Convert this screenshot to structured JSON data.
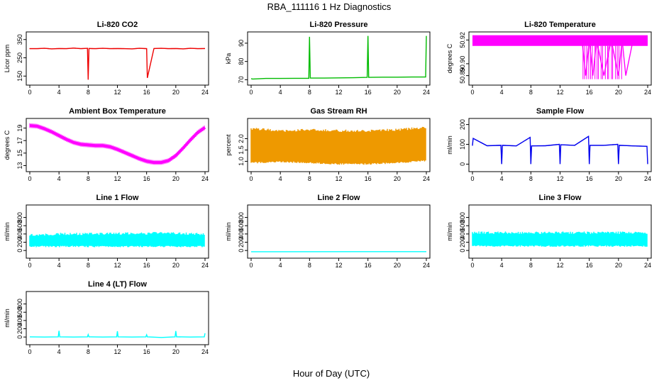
{
  "figure": {
    "title": "RBA_111116  1 Hz Diagnostics",
    "xlabel": "Hour of Day (UTC)"
  },
  "colors": {
    "red": "#ee0000",
    "green": "#00bb00",
    "magenta": "#ff00ff",
    "orange": "#ee9900",
    "blue": "#0000ee",
    "cyan": "#00ffff"
  },
  "chart_data": [
    {
      "type": "line",
      "title": "Li-820 CO2",
      "ylabel": "Licor ppm",
      "x": [
        0,
        1,
        2,
        3,
        4,
        5,
        6,
        7,
        7.9,
        8.0,
        8.1,
        9,
        10,
        11,
        12,
        13,
        14,
        15,
        16,
        16.1,
        17,
        18,
        19,
        20,
        21,
        22,
        23,
        24
      ],
      "values": [
        300,
        300,
        302,
        299,
        301,
        300,
        303,
        300,
        302,
        130,
        301,
        300,
        302,
        300,
        301,
        300,
        299,
        302,
        300,
        140,
        301,
        302,
        300,
        301,
        299,
        302,
        300,
        301
      ],
      "xticks": [
        "0",
        "4",
        "8",
        "12",
        "16",
        "20",
        "24"
      ],
      "yticks": [
        "150",
        "250",
        "350"
      ],
      "xlim": [
        0,
        24
      ],
      "ylim": [
        120,
        380
      ],
      "color": "#ee0000"
    },
    {
      "type": "line",
      "title": "Li-820 Pressure",
      "ylabel": "kPa",
      "x": [
        0,
        0.2,
        1,
        2,
        4,
        6,
        7.9,
        8.0,
        8.1,
        10,
        12,
        14,
        15.9,
        16.0,
        16.1,
        18,
        20,
        22,
        23.9,
        24.0
      ],
      "values": [
        70.6,
        70.4,
        70.5,
        70.7,
        70.7,
        70.8,
        70.8,
        93.5,
        70.9,
        70.9,
        71.0,
        71.1,
        71.3,
        94.0,
        71.3,
        71.4,
        71.4,
        71.5,
        71.5,
        94.0
      ],
      "xticks": [
        "0",
        "4",
        "8",
        "12",
        "16",
        "20",
        "24"
      ],
      "yticks": [
        "70",
        "80",
        "90"
      ],
      "xlim": [
        0,
        24
      ],
      "ylim": [
        69,
        95
      ],
      "color": "#00bb00"
    },
    {
      "type": "line",
      "title": "Li-820 Temperature",
      "ylabel": "degrees C",
      "x": [
        0,
        4,
        8,
        12,
        15,
        15.5,
        16,
        16.5,
        17,
        18,
        19,
        20,
        20.5,
        21,
        22,
        24
      ],
      "values": [
        50.92,
        50.92,
        50.92,
        50.92,
        50.92,
        50.89,
        50.92,
        50.89,
        50.92,
        50.89,
        50.92,
        50.89,
        50.92,
        50.89,
        50.92,
        50.92
      ],
      "xticks": [
        "0",
        "4",
        "8",
        "12",
        "16",
        "20",
        "24"
      ],
      "yticks": [
        "50.89",
        "50.90",
        "50.92"
      ],
      "xlim": [
        0,
        24
      ],
      "ylim": [
        50.885,
        50.925
      ],
      "color": "#ff00ff"
    },
    {
      "type": "line",
      "title": "Ambient Box Temperature",
      "ylabel": "degrees C",
      "x": [
        0,
        1,
        2,
        3,
        4,
        5,
        6,
        7,
        8,
        9,
        10,
        11,
        12,
        13,
        14,
        15,
        16,
        17,
        18,
        19,
        20,
        21,
        22,
        23,
        24
      ],
      "values": [
        19.4,
        19.3,
        18.9,
        18.4,
        17.8,
        17.2,
        16.7,
        16.4,
        16.3,
        16.2,
        16.2,
        16.0,
        15.6,
        15.1,
        14.6,
        14.1,
        13.7,
        13.5,
        13.5,
        13.8,
        14.6,
        15.8,
        17.1,
        18.3,
        19.1
      ],
      "xticks": [
        "0",
        "4",
        "8",
        "12",
        "16",
        "20",
        "24"
      ],
      "yticks": [
        "13",
        "15",
        "17",
        "19"
      ],
      "xlim": [
        0,
        24
      ],
      "ylim": [
        12.6,
        20.2
      ],
      "color": "#ff00ff"
    },
    {
      "type": "area",
      "title": "Gas Stream RH",
      "ylabel": "percent",
      "x": [
        0,
        4,
        8,
        12,
        16,
        20,
        24
      ],
      "series": [
        {
          "name": "max",
          "values": [
            2.5,
            2.4,
            2.45,
            2.4,
            2.4,
            2.45,
            2.55
          ]
        },
        {
          "name": "min",
          "values": [
            0.9,
            0.95,
            0.9,
            0.85,
            0.85,
            0.9,
            1.0
          ]
        }
      ],
      "xticks": [
        "0",
        "4",
        "8",
        "12",
        "16",
        "20",
        "24"
      ],
      "yticks": [
        "1.0",
        "1.5",
        "2.0"
      ],
      "xlim": [
        0,
        24
      ],
      "ylim": [
        0.7,
        2.8
      ],
      "color": "#ee9900"
    },
    {
      "type": "line",
      "title": "Sample Flow",
      "ylabel": "ml/min",
      "x": [
        0,
        0.1,
        2,
        3.9,
        4.0,
        4.1,
        6,
        7.9,
        8.0,
        8.1,
        10,
        11.9,
        12.0,
        12.1,
        14,
        15.9,
        16.0,
        16.1,
        18,
        19.9,
        20.0,
        20.1,
        22,
        23.9,
        24.0
      ],
      "values": [
        95,
        130,
        93,
        95,
        0,
        95,
        92,
        135,
        0,
        92,
        93,
        100,
        0,
        98,
        95,
        140,
        0,
        95,
        95,
        100,
        0,
        95,
        92,
        90,
        0
      ],
      "xticks": [
        "0",
        "4",
        "8",
        "12",
        "16",
        "20",
        "24"
      ],
      "yticks": [
        "0",
        "100",
        "200"
      ],
      "xlim": [
        0,
        24
      ],
      "ylim": [
        -20,
        220
      ],
      "color": "#0000ee"
    },
    {
      "type": "area",
      "title": "Line 1 Flow",
      "ylabel": "ml/min",
      "x": [
        0,
        4,
        8,
        12,
        16,
        17.5,
        20,
        24
      ],
      "series": [
        {
          "name": "max",
          "values": [
            410,
            430,
            430,
            440,
            440,
            460,
            440,
            430
          ]
        },
        {
          "name": "min",
          "values": [
            80,
            80,
            80,
            80,
            80,
            80,
            80,
            80
          ]
        }
      ],
      "xticks": [
        "0",
        "4",
        "8",
        "12",
        "16",
        "20",
        "24"
      ],
      "yticks": [
        "0",
        "200",
        "400",
        "600",
        "800"
      ],
      "xlim": [
        0,
        24
      ],
      "ylim": [
        -100,
        1050
      ],
      "color": "#00ffff"
    },
    {
      "type": "line",
      "title": "Line 2 Flow",
      "ylabel": "ml/min",
      "x": [
        0,
        24
      ],
      "values": [
        -30,
        -28
      ],
      "xticks": [
        "0",
        "4",
        "8",
        "12",
        "16",
        "20",
        "24"
      ],
      "yticks": [
        "0",
        "200",
        "400",
        "600",
        "800"
      ],
      "xlim": [
        0,
        24
      ],
      "ylim": [
        -100,
        1050
      ],
      "color": "#00ffff"
    },
    {
      "type": "area",
      "title": "Line 3 Flow",
      "ylabel": "ml/min",
      "x": [
        0,
        4,
        8,
        12,
        16,
        20,
        24
      ],
      "series": [
        {
          "name": "max",
          "values": [
            460,
            460,
            460,
            460,
            460,
            460,
            460
          ]
        },
        {
          "name": "min",
          "values": [
            90,
            90,
            90,
            90,
            90,
            90,
            90
          ]
        }
      ],
      "xticks": [
        "0",
        "4",
        "8",
        "12",
        "16",
        "20",
        "24"
      ],
      "yticks": [
        "0",
        "200",
        "400",
        "600",
        "800"
      ],
      "xlim": [
        0,
        24
      ],
      "ylim": [
        -100,
        1050
      ],
      "color": "#00ffff"
    },
    {
      "type": "line",
      "title": "Line 4 (LT) Flow",
      "ylabel": "ml/min",
      "x": [
        0,
        2,
        3.9,
        4.0,
        4.1,
        6,
        7.9,
        8.0,
        8.1,
        10,
        11.9,
        12.0,
        12.1,
        14,
        15.9,
        16.0,
        16.1,
        18,
        19.9,
        20.0,
        20.1,
        22,
        23.9,
        24.0
      ],
      "values": [
        5,
        0,
        5,
        150,
        5,
        0,
        5,
        60,
        5,
        0,
        5,
        140,
        5,
        0,
        5,
        55,
        5,
        -10,
        5,
        145,
        5,
        0,
        5,
        90
      ],
      "xticks": [
        "0",
        "4",
        "8",
        "12",
        "16",
        "20",
        "24"
      ],
      "yticks": [
        "0",
        "200",
        "400",
        "600",
        "800"
      ],
      "xlim": [
        0,
        24
      ],
      "ylim": [
        -100,
        1050
      ],
      "color": "#00ffff"
    }
  ]
}
